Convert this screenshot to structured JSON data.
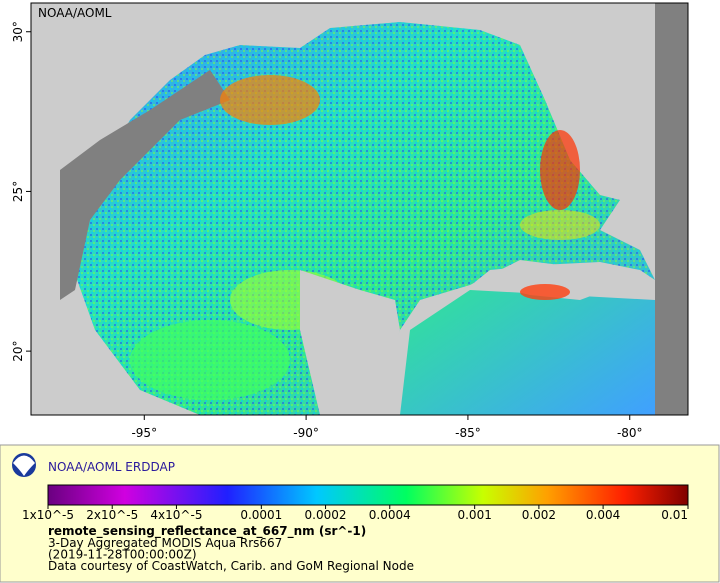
{
  "map": {
    "label": "NOAA/AOML",
    "lonlim": [
      -98.5,
      -78.2
    ],
    "latlim": [
      18,
      30.9
    ],
    "lonticks": [
      {
        "value": -95,
        "label": "-95°"
      },
      {
        "value": -90,
        "label": "-90°"
      },
      {
        "value": -85,
        "label": "-85°"
      },
      {
        "value": -80,
        "label": "-80°"
      }
    ],
    "latticks": [
      {
        "value": 20,
        "label": "20°"
      },
      {
        "value": 25,
        "label": "25°"
      },
      {
        "value": 30,
        "label": "30°"
      }
    ]
  },
  "legend": {
    "title": "NOAA/AOML ERDDAP",
    "colorbar": {
      "scale": "log",
      "lim": [
        1e-05,
        0.01
      ],
      "ticks": [
        {
          "value": 1e-05,
          "label": "1x10^-5"
        },
        {
          "value": 2e-05,
          "label": "2x10^-5"
        },
        {
          "value": 4e-05,
          "label": "4x10^-5"
        },
        0.0001,
        0.0002,
        0.0004,
        0.001,
        0.002,
        0.004,
        0.01
      ]
    },
    "variable": "remote_sensing_reflectance_at_667_nm (sr^-1)",
    "lines": [
      "3-Day Aggregated MODIS Aqua Rrs667",
      "(2019-11-28T00:00:00Z)",
      "Data courtesy of CoastWatch, Carib. and GoM Regional Node"
    ]
  }
}
